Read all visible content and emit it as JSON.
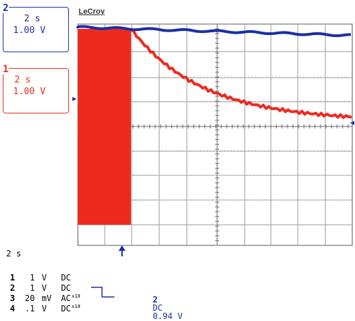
{
  "brand": "LeCroy",
  "timebase": "2 s",
  "colors": {
    "ch1": "#ee2a1f",
    "ch2": "#1a2ea8",
    "grid": "#9a9a9a"
  },
  "channels": [
    {
      "number": "2",
      "timebase": "2 s",
      "volts_per_div": "1.00 V"
    },
    {
      "number": "1",
      "timebase": "2 s",
      "volts_per_div": "1.00 V"
    }
  ],
  "settings": [
    {
      "channel": "1",
      "value": "1",
      "unit": "V",
      "coupling": "DC",
      "probe": ""
    },
    {
      "channel": "2",
      "value": "1",
      "unit": "V",
      "coupling": "DC",
      "probe": ""
    },
    {
      "channel": "3",
      "value": "20",
      "unit": "mV",
      "coupling": "AC",
      "probe": "x10"
    },
    {
      "channel": "4",
      "value": ".1",
      "unit": "V",
      "coupling": "DC",
      "probe": "x10"
    }
  ],
  "trigger": {
    "channel": "2",
    "coupling": "DC",
    "level": "0.94 V"
  }
}
